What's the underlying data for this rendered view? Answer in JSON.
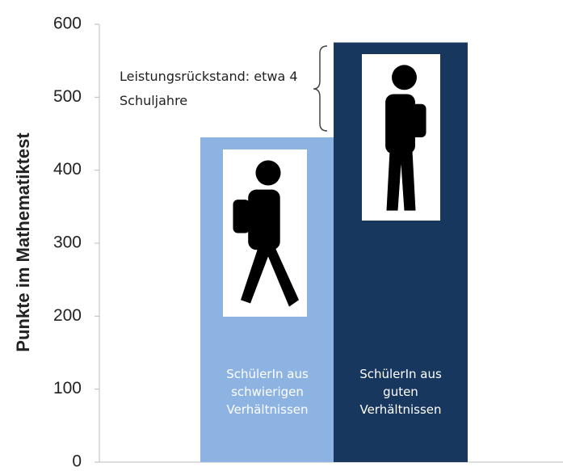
{
  "chart_data": {
    "type": "bar",
    "ylabel": "Punkte im Mathematiktest",
    "categories": [
      "SchülerIn aus schwierigen Verhältnissen",
      "SchülerIn aus guten Verhältnissen"
    ],
    "values": [
      445,
      575
    ],
    "colors": [
      "#8db3e2",
      "#17375e"
    ],
    "ylim": [
      0,
      600
    ],
    "yticks": [
      0,
      100,
      200,
      300,
      400,
      500,
      600
    ],
    "annotation": "Leistungsrückstand: etwa 4 Schuljahre"
  }
}
